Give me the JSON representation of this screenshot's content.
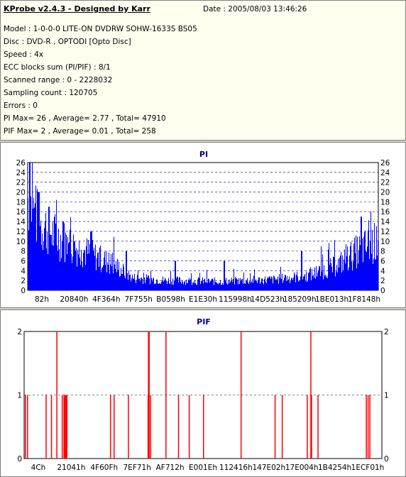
{
  "header": {
    "title": "KProbe v2.4.3 - Designed by Karr",
    "date": "Date : 2005/08/03 13:46:26",
    "lines": [
      "Model : 1-0-0-0 LITE-ON DVDRW SOHW-1633S BS05",
      "Disc : DVD-R , OPTODI [Opto Disc]",
      "Speed : 4x",
      "ECC blocks sum (PI/PIF) : 8/1",
      "Scanned range : 0 - 2228032",
      "Sampling count : 120705",
      "Errors : 0",
      "PI Max= 26 , Average= 2.77 , Total= 47910",
      "PIF Max= 2 , Average= 0.01 , Total= 258"
    ]
  },
  "colors": {
    "bar": "#0000ff",
    "pif_bar": "#ff0000",
    "grid": "#000080",
    "title": "#00008b"
  },
  "chart_data": [
    {
      "type": "bar",
      "title": "PI",
      "ylim": [
        0,
        26
      ],
      "yticks": [
        0,
        2,
        4,
        6,
        8,
        10,
        12,
        14,
        16,
        18,
        20,
        22,
        24,
        26
      ],
      "x_tick_labels": [
        "82h",
        "20840h",
        "4F364h",
        "7F755h",
        "B0598h",
        "E1E30h",
        "115998h",
        "14D523h",
        "185209h",
        "1BE013h",
        "1F8148h"
      ],
      "grid": true,
      "profile": [
        [
          0,
          19
        ],
        [
          0.03,
          14
        ],
        [
          0.08,
          11
        ],
        [
          0.13,
          9
        ],
        [
          0.19,
          7
        ],
        [
          0.25,
          5
        ],
        [
          0.3,
          2.5
        ],
        [
          0.4,
          2
        ],
        [
          0.55,
          1.8
        ],
        [
          0.7,
          2.2
        ],
        [
          0.8,
          3
        ],
        [
          0.88,
          5
        ],
        [
          0.94,
          8
        ],
        [
          1,
          10
        ]
      ],
      "peaks": [
        [
          0.005,
          26
        ],
        [
          0.03,
          20
        ],
        [
          0.06,
          17
        ],
        [
          0.1,
          14
        ],
        [
          0.18,
          12
        ],
        [
          0.28,
          8
        ],
        [
          0.42,
          6
        ],
        [
          0.56,
          6
        ],
        [
          0.78,
          8
        ],
        [
          0.95,
          15
        ]
      ]
    },
    {
      "type": "bar",
      "title": "PIF",
      "ylim": [
        0,
        2
      ],
      "yticks": [
        0,
        1,
        2
      ],
      "x_tick_labels": [
        "4Ch",
        "21041h",
        "4F60Fh",
        "7EF71h",
        "AF712h",
        "E001Eh",
        "112416h",
        "147E02h",
        "17E004h",
        "1B4254h",
        "1ECF01h"
      ],
      "grid": true,
      "spikes": [
        [
          0.002,
          1
        ],
        [
          0.008,
          1
        ],
        [
          0.06,
          1
        ],
        [
          0.075,
          1
        ],
        [
          0.09,
          2
        ],
        [
          0.105,
          1
        ],
        [
          0.11,
          1
        ],
        [
          0.112,
          1
        ],
        [
          0.115,
          1
        ],
        [
          0.118,
          1
        ],
        [
          0.24,
          1
        ],
        [
          0.25,
          1
        ],
        [
          0.29,
          1
        ],
        [
          0.345,
          1
        ],
        [
          0.346,
          2
        ],
        [
          0.348,
          2
        ],
        [
          0.352,
          1
        ],
        [
          0.395,
          2
        ],
        [
          0.43,
          1
        ],
        [
          0.46,
          1
        ],
        [
          0.5,
          1
        ],
        [
          0.605,
          2
        ],
        [
          0.7,
          1
        ],
        [
          0.72,
          1
        ],
        [
          0.79,
          1
        ],
        [
          0.8,
          2
        ],
        [
          0.802,
          1
        ],
        [
          0.82,
          1
        ],
        [
          0.955,
          1
        ],
        [
          0.96,
          1
        ],
        [
          0.965,
          1
        ]
      ]
    }
  ]
}
